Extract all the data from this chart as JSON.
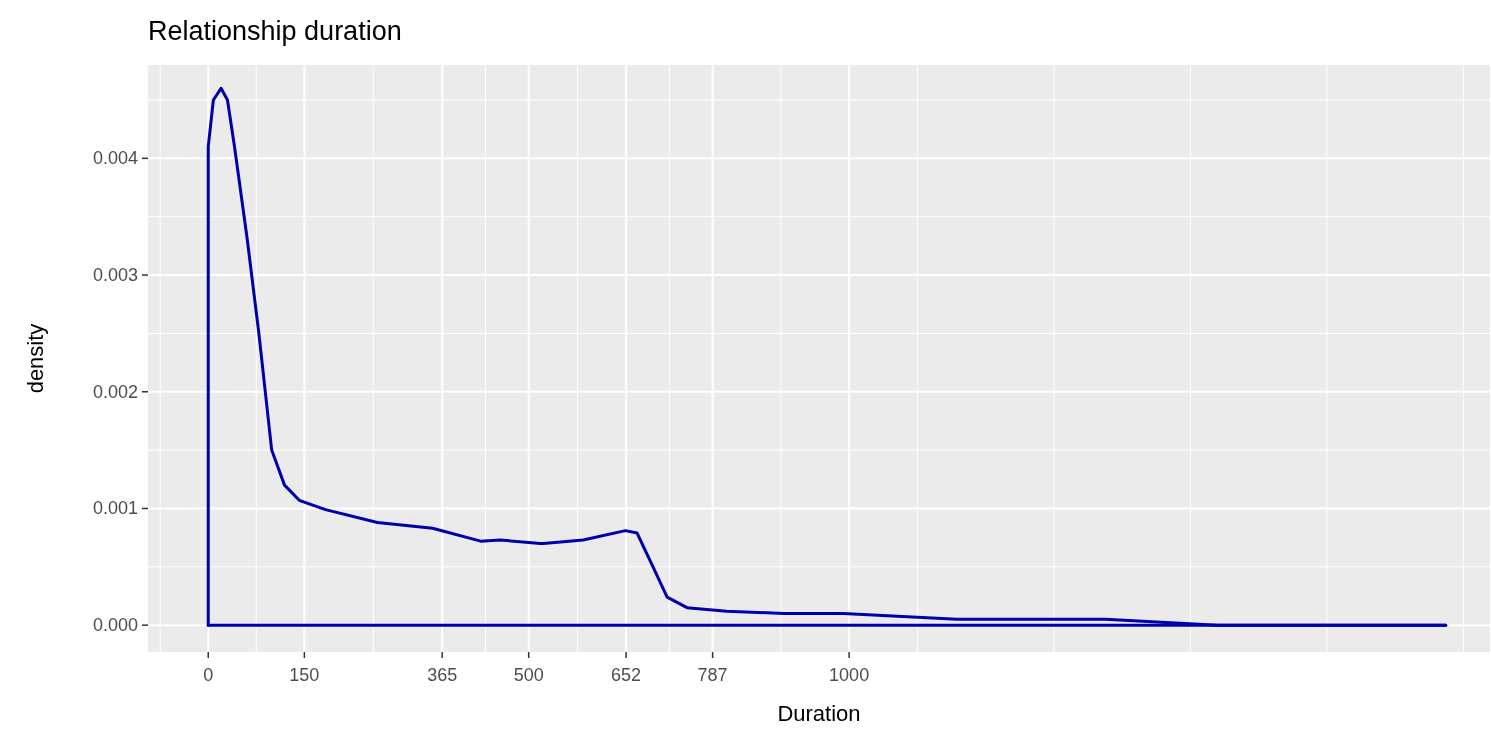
{
  "chart_data": {
    "type": "line",
    "title": "Relationship duration",
    "xlabel": "Duration",
    "ylabel": "density",
    "xlim": [
      -94,
      2000
    ],
    "ylim": [
      -0.00023,
      0.0048
    ],
    "xticks": [
      0,
      150,
      365,
      500,
      652,
      787,
      1000
    ],
    "yticks": [
      {
        "value": 0,
        "label": "0.000"
      },
      {
        "value": 0.001,
        "label": "0.001"
      },
      {
        "value": 0.002,
        "label": "0.002"
      },
      {
        "value": 0.003,
        "label": "0.003"
      },
      {
        "value": 0.004,
        "label": "0.004"
      }
    ],
    "grid": true,
    "line_style": "solid",
    "series": [
      {
        "color": "#0000aa",
        "x": [
          0,
          0,
          4,
          8,
          20,
          30,
          41,
          61,
          79,
          99,
          119,
          142,
          183,
          264,
          350,
          425,
          455,
          518,
          523,
          585,
          651,
          669,
          694,
          716,
          747,
          809,
          897,
          991,
          1168,
          1400,
          1575,
          1931
        ],
        "values": [
          0,
          0.0041,
          0.0043,
          0.0045,
          0.0046,
          0.0045,
          0.0041,
          0.0033,
          0.0025,
          0.0015,
          0.0012,
          0.00107,
          0.00099,
          0.00088,
          0.00083,
          0.00072,
          0.00073,
          0.0007,
          0.0007,
          0.00073,
          0.00081,
          0.00079,
          0.0005,
          0.00024,
          0.00015,
          0.00012,
          0.0001,
          0.0001,
          5e-05,
          5e-05,
          0,
          0
        ]
      },
      {
        "color": "#0000aa",
        "x": [
          0,
          1931
        ],
        "values": [
          0,
          0
        ]
      }
    ]
  }
}
